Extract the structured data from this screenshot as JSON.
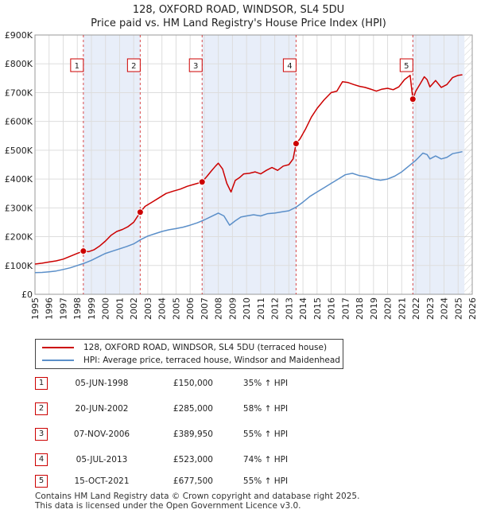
{
  "chart_data": {
    "type": "line",
    "title": "128, OXFORD ROAD, WINDSOR, SL4 5DU",
    "subtitle": "Price paid vs. HM Land Registry's House Price Index (HPI)",
    "xlabel": "",
    "ylabel": "",
    "xlim": [
      1995,
      2026
    ],
    "ylim": [
      0,
      900000
    ],
    "x_ticks": [
      "1995",
      "1996",
      "1997",
      "1998",
      "1999",
      "2000",
      "2001",
      "2002",
      "2003",
      "2004",
      "2005",
      "2006",
      "2007",
      "2008",
      "2009",
      "2010",
      "2011",
      "2012",
      "2013",
      "2014",
      "2015",
      "2016",
      "2017",
      "2018",
      "2019",
      "2020",
      "2021",
      "2022",
      "2023",
      "2024",
      "2025",
      "2026"
    ],
    "y_ticks": [
      {
        "value": 0,
        "label": "£0"
      },
      {
        "value": 100000,
        "label": "£100K"
      },
      {
        "value": 200000,
        "label": "£200K"
      },
      {
        "value": 300000,
        "label": "£300K"
      },
      {
        "value": 400000,
        "label": "£400K"
      },
      {
        "value": 500000,
        "label": "£500K"
      },
      {
        "value": 600000,
        "label": "£600K"
      },
      {
        "value": 700000,
        "label": "£700K"
      },
      {
        "value": 800000,
        "label": "£800K"
      },
      {
        "value": 900000,
        "label": "£900K"
      }
    ],
    "grid": true,
    "series": [
      {
        "name": "128, OXFORD ROAD, WINDSOR, SL4 5DU (terraced house)",
        "color": "#cc0000",
        "x": [
          1995.0,
          1995.5,
          1996.0,
          1996.5,
          1997.0,
          1997.5,
          1998.0,
          1998.43,
          1998.8,
          1999.2,
          1999.6,
          2000.0,
          2000.4,
          2000.8,
          2001.2,
          2001.6,
          2002.0,
          2002.46,
          2002.8,
          2003.3,
          2003.8,
          2004.3,
          2004.8,
          2005.3,
          2005.8,
          2006.3,
          2006.85,
          2007.2,
          2007.5,
          2007.8,
          2008.0,
          2008.3,
          2008.6,
          2008.9,
          2009.2,
          2009.5,
          2009.8,
          2010.2,
          2010.6,
          2011.0,
          2011.4,
          2011.8,
          2012.2,
          2012.6,
          2013.0,
          2013.3,
          2013.51,
          2013.8,
          2014.2,
          2014.6,
          2015.0,
          2015.5,
          2016.0,
          2016.4,
          2016.8,
          2017.2,
          2017.6,
          2018.0,
          2018.4,
          2018.8,
          2019.2,
          2019.6,
          2020.0,
          2020.4,
          2020.8,
          2021.2,
          2021.6,
          2021.79,
          2022.0,
          2022.3,
          2022.6,
          2022.8,
          2023.0,
          2023.4,
          2023.8,
          2024.2,
          2024.6,
          2025.0,
          2025.3
        ],
        "y": [
          105000,
          108000,
          112000,
          116000,
          122000,
          132000,
          142000,
          150000,
          148000,
          155000,
          168000,
          185000,
          205000,
          218000,
          225000,
          235000,
          250000,
          285000,
          305000,
          320000,
          335000,
          350000,
          358000,
          365000,
          375000,
          382000,
          389950,
          410000,
          428000,
          445000,
          455000,
          435000,
          385000,
          355000,
          395000,
          405000,
          418000,
          420000,
          425000,
          418000,
          430000,
          440000,
          430000,
          445000,
          450000,
          470000,
          523000,
          540000,
          575000,
          615000,
          645000,
          675000,
          700000,
          705000,
          738000,
          735000,
          728000,
          722000,
          718000,
          712000,
          705000,
          712000,
          715000,
          710000,
          720000,
          745000,
          760000,
          677500,
          705000,
          730000,
          755000,
          745000,
          720000,
          742000,
          718000,
          728000,
          752000,
          760000,
          762000
        ]
      },
      {
        "name": "HPI: Average price, terraced house, Windsor and Maidenhead",
        "color": "#5b8fc9",
        "x": [
          1995.0,
          1995.5,
          1996.0,
          1996.5,
          1997.0,
          1997.5,
          1998.0,
          1998.5,
          1999.0,
          1999.5,
          2000.0,
          2000.5,
          2001.0,
          2001.5,
          2002.0,
          2002.5,
          2003.0,
          2003.5,
          2004.0,
          2004.5,
          2005.0,
          2005.5,
          2006.0,
          2006.5,
          2007.0,
          2007.5,
          2008.0,
          2008.4,
          2008.8,
          2009.2,
          2009.6,
          2010.0,
          2010.5,
          2011.0,
          2011.5,
          2012.0,
          2012.5,
          2013.0,
          2013.5,
          2014.0,
          2014.5,
          2015.0,
          2015.5,
          2016.0,
          2016.5,
          2017.0,
          2017.5,
          2018.0,
          2018.5,
          2019.0,
          2019.5,
          2020.0,
          2020.5,
          2021.0,
          2021.5,
          2022.0,
          2022.5,
          2022.8,
          2023.0,
          2023.4,
          2023.8,
          2024.2,
          2024.6,
          2025.0,
          2025.3
        ],
        "y": [
          75000,
          76000,
          78000,
          81000,
          86000,
          92000,
          100000,
          108000,
          118000,
          130000,
          142000,
          150000,
          158000,
          166000,
          175000,
          190000,
          202000,
          210000,
          218000,
          224000,
          228000,
          233000,
          240000,
          248000,
          258000,
          270000,
          282000,
          272000,
          240000,
          255000,
          268000,
          272000,
          276000,
          272000,
          280000,
          282000,
          286000,
          290000,
          302000,
          320000,
          340000,
          355000,
          370000,
          385000,
          400000,
          415000,
          420000,
          412000,
          408000,
          400000,
          396000,
          400000,
          410000,
          425000,
          445000,
          465000,
          490000,
          485000,
          470000,
          480000,
          470000,
          475000,
          488000,
          492000,
          495000
        ]
      }
    ],
    "transactions": [
      {
        "label": "1",
        "date": "05-JUN-1998",
        "price": "£150,000",
        "hpi_change": "35% ↑ HPI",
        "x": 1998.43,
        "y": 150000
      },
      {
        "label": "2",
        "date": "20-JUN-2002",
        "price": "£285,000",
        "hpi_change": "58% ↑ HPI",
        "x": 2002.46,
        "y": 285000
      },
      {
        "label": "3",
        "date": "07-NOV-2006",
        "price": "£389,950",
        "hpi_change": "55% ↑ HPI",
        "x": 2006.85,
        "y": 389950
      },
      {
        "label": "4",
        "date": "05-JUL-2013",
        "price": "£523,000",
        "hpi_change": "74% ↑ HPI",
        "x": 2013.51,
        "y": 523000
      },
      {
        "label": "5",
        "date": "15-OCT-2021",
        "price": "£677,500",
        "hpi_change": "55% ↑ HPI",
        "x": 2021.79,
        "y": 677500
      }
    ]
  },
  "footer": {
    "line1": "Contains HM Land Registry data © Crown copyright and database right 2025.",
    "line2": "This data is licensed under the Open Government Licence v3.0."
  }
}
